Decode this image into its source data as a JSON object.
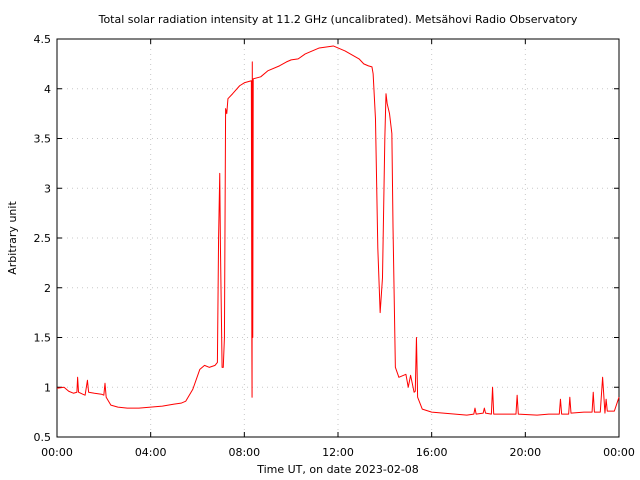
{
  "chart_data": {
    "type": "line",
    "title": "Total solar radiation intensity at 11.2 GHz (uncalibrated). Metsähovi Radio Observatory",
    "xlabel": "Time UT, on date 2023-02-08",
    "ylabel": "Arbitrary unit",
    "xlim": [
      0,
      24
    ],
    "ylim": [
      0.5,
      4.5
    ],
    "grid": true,
    "x_ticks": [
      0,
      4,
      8,
      12,
      16,
      20,
      24
    ],
    "x_tick_labels": [
      "00:00",
      "04:00",
      "08:00",
      "12:00",
      "16:00",
      "20:00",
      "00:00"
    ],
    "y_ticks": [
      0.5,
      1,
      1.5,
      2,
      2.5,
      3,
      3.5,
      4,
      4.5
    ],
    "y_tick_labels": [
      "0.5",
      "1",
      "1.5",
      "2",
      "2.5",
      "3",
      "3.5",
      "4",
      "4.5"
    ],
    "series": [
      {
        "color": "#ff0000",
        "points": [
          [
            0.0,
            0.99
          ],
          [
            0.3,
            1.0
          ],
          [
            0.5,
            0.96
          ],
          [
            0.7,
            0.94
          ],
          [
            0.85,
            0.95
          ],
          [
            0.88,
            1.1
          ],
          [
            0.92,
            0.95
          ],
          [
            1.1,
            0.93
          ],
          [
            1.2,
            0.92
          ],
          [
            1.3,
            1.07
          ],
          [
            1.35,
            0.95
          ],
          [
            1.6,
            0.94
          ],
          [
            1.9,
            0.93
          ],
          [
            2.0,
            0.92
          ],
          [
            2.05,
            1.04
          ],
          [
            2.1,
            0.9
          ],
          [
            2.3,
            0.82
          ],
          [
            2.6,
            0.8
          ],
          [
            3.0,
            0.79
          ],
          [
            3.5,
            0.79
          ],
          [
            4.0,
            0.8
          ],
          [
            4.5,
            0.81
          ],
          [
            5.0,
            0.83
          ],
          [
            5.3,
            0.84
          ],
          [
            5.5,
            0.86
          ],
          [
            5.8,
            0.98
          ],
          [
            6.1,
            1.18
          ],
          [
            6.3,
            1.22
          ],
          [
            6.5,
            1.2
          ],
          [
            6.75,
            1.22
          ],
          [
            6.85,
            1.25
          ],
          [
            6.9,
            2.5
          ],
          [
            6.95,
            3.15
          ],
          [
            6.98,
            2.4
          ],
          [
            7.05,
            1.2
          ],
          [
            7.1,
            1.2
          ],
          [
            7.15,
            1.5
          ],
          [
            7.2,
            3.8
          ],
          [
            7.25,
            3.75
          ],
          [
            7.3,
            3.9
          ],
          [
            7.5,
            3.95
          ],
          [
            7.8,
            4.03
          ],
          [
            8.0,
            4.06
          ],
          [
            8.3,
            4.08
          ],
          [
            8.32,
            1.5
          ],
          [
            8.33,
            0.9
          ],
          [
            8.34,
            4.27
          ],
          [
            8.36,
            1.5
          ],
          [
            8.38,
            4.1
          ],
          [
            8.7,
            4.12
          ],
          [
            9.0,
            4.18
          ],
          [
            9.5,
            4.23
          ],
          [
            9.8,
            4.27
          ],
          [
            10.0,
            4.29
          ],
          [
            10.3,
            4.3
          ],
          [
            10.6,
            4.35
          ],
          [
            10.9,
            4.38
          ],
          [
            11.2,
            4.41
          ],
          [
            11.5,
            4.42
          ],
          [
            11.8,
            4.43
          ],
          [
            12.0,
            4.41
          ],
          [
            12.3,
            4.38
          ],
          [
            12.6,
            4.34
          ],
          [
            12.9,
            4.3
          ],
          [
            13.1,
            4.25
          ],
          [
            13.3,
            4.23
          ],
          [
            13.45,
            4.22
          ],
          [
            13.5,
            4.15
          ],
          [
            13.6,
            3.7
          ],
          [
            13.7,
            2.4
          ],
          [
            13.8,
            1.75
          ],
          [
            13.9,
            2.1
          ],
          [
            14.0,
            3.5
          ],
          [
            14.05,
            3.95
          ],
          [
            14.1,
            3.85
          ],
          [
            14.2,
            3.75
          ],
          [
            14.3,
            3.55
          ],
          [
            14.35,
            2.6
          ],
          [
            14.45,
            1.2
          ],
          [
            14.6,
            1.1
          ],
          [
            14.8,
            1.12
          ],
          [
            14.9,
            1.13
          ],
          [
            15.0,
            1.0
          ],
          [
            15.1,
            1.12
          ],
          [
            15.25,
            0.95
          ],
          [
            15.3,
            0.96
          ],
          [
            15.35,
            1.5
          ],
          [
            15.4,
            0.9
          ],
          [
            15.6,
            0.78
          ],
          [
            16.0,
            0.75
          ],
          [
            16.5,
            0.74
          ],
          [
            17.0,
            0.73
          ],
          [
            17.5,
            0.72
          ],
          [
            17.8,
            0.73
          ],
          [
            17.85,
            0.79
          ],
          [
            17.9,
            0.73
          ],
          [
            18.2,
            0.74
          ],
          [
            18.25,
            0.79
          ],
          [
            18.3,
            0.74
          ],
          [
            18.55,
            0.73
          ],
          [
            18.6,
            1.0
          ],
          [
            18.65,
            0.73
          ],
          [
            19.0,
            0.73
          ],
          [
            19.6,
            0.73
          ],
          [
            19.65,
            0.92
          ],
          [
            19.7,
            0.73
          ],
          [
            20.5,
            0.72
          ],
          [
            21.0,
            0.73
          ],
          [
            21.45,
            0.73
          ],
          [
            21.5,
            0.88
          ],
          [
            21.55,
            0.73
          ],
          [
            21.85,
            0.73
          ],
          [
            21.9,
            0.9
          ],
          [
            21.95,
            0.74
          ],
          [
            22.5,
            0.75
          ],
          [
            22.85,
            0.75
          ],
          [
            22.9,
            0.95
          ],
          [
            22.95,
            0.75
          ],
          [
            23.2,
            0.75
          ],
          [
            23.3,
            1.1
          ],
          [
            23.4,
            0.74
          ],
          [
            23.45,
            0.88
          ],
          [
            23.5,
            0.76
          ],
          [
            23.8,
            0.76
          ],
          [
            24.0,
            0.9
          ]
        ]
      }
    ]
  }
}
